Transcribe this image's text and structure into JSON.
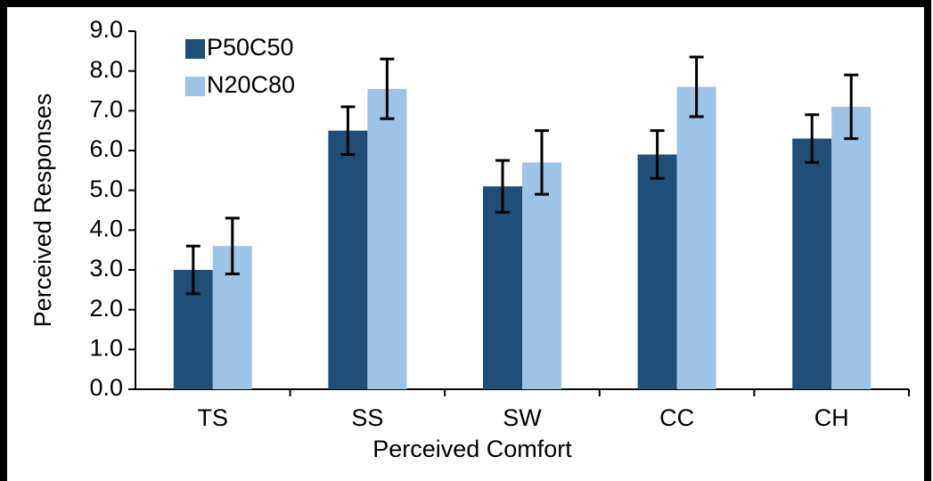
{
  "chart_data": {
    "type": "bar",
    "xlabel": "Perceived Comfort",
    "ylabel": "Perceived Responses",
    "categories": [
      "TS",
      "SS",
      "SW",
      "CC",
      "CH"
    ],
    "series": [
      {
        "name": "P50C50",
        "color": "#1f4e79",
        "values": [
          3.0,
          6.5,
          5.1,
          5.9,
          6.3
        ],
        "errors": [
          0.6,
          0.6,
          0.65,
          0.6,
          0.6
        ]
      },
      {
        "name": "N20C80",
        "color": "#9dc3e6",
        "values": [
          3.6,
          7.55,
          5.7,
          7.6,
          7.1
        ],
        "errors": [
          0.7,
          0.75,
          0.8,
          0.75,
          0.8
        ]
      }
    ],
    "ylim": [
      0,
      9
    ],
    "yticks": [
      {
        "value": 0,
        "label": "0.0"
      },
      {
        "value": 1,
        "label": "1.0"
      },
      {
        "value": 2,
        "label": "2.0"
      },
      {
        "value": 3,
        "label": "3.0"
      },
      {
        "value": 4,
        "label": "4.0"
      },
      {
        "value": 5,
        "label": "5.0"
      },
      {
        "value": 6,
        "label": "6.0"
      },
      {
        "value": 7,
        "label": "7.0"
      },
      {
        "value": 8,
        "label": "8.0"
      },
      {
        "value": 9,
        "label": "9.0"
      }
    ],
    "legend": "upper-left",
    "grid": false
  }
}
